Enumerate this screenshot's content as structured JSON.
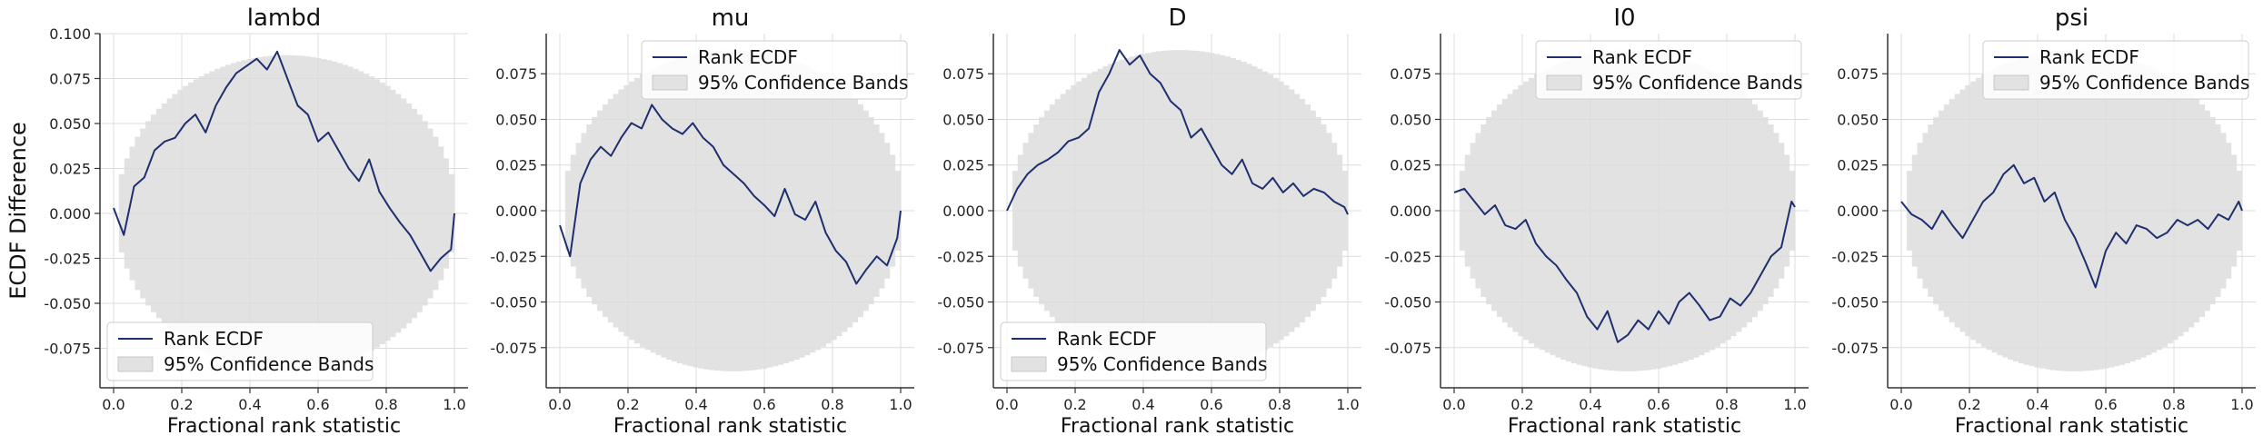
{
  "figure": {
    "ylabel": "ECDF Difference",
    "xlabel": "Fractional rank statistic"
  },
  "colors": {
    "line": "#1f2f6e",
    "band": "#e2e2e2",
    "grid": "#dcdcdc",
    "axis": "#333333"
  },
  "chart_data": [
    {
      "type": "line",
      "title": "lambd",
      "xlabel": "Fractional rank statistic",
      "ylabel": "ECDF Difference",
      "xlim": [
        -0.04,
        1.04
      ],
      "ylim": [
        -0.097,
        0.1
      ],
      "xticks": [
        "0.0",
        "0.2",
        "0.4",
        "0.6",
        "0.8",
        "1.0"
      ],
      "yticks": [
        "0.100",
        "0.075",
        "0.050",
        "0.025",
        "0.000",
        "-0.025",
        "-0.050",
        "-0.075"
      ],
      "ytick_values": [
        0.1,
        0.075,
        0.05,
        0.025,
        0.0,
        -0.025,
        -0.05,
        -0.075
      ],
      "grid": true,
      "legend": {
        "placement": "lower-left",
        "entries": [
          "Rank ECDF",
          "95% Confidence Bands"
        ]
      },
      "band_halfwidth": 0.088,
      "series": [
        {
          "name": "Rank ECDF",
          "x": [
            0.0,
            0.03,
            0.06,
            0.09,
            0.12,
            0.15,
            0.18,
            0.21,
            0.24,
            0.27,
            0.3,
            0.33,
            0.36,
            0.39,
            0.42,
            0.45,
            0.48,
            0.51,
            0.54,
            0.57,
            0.6,
            0.63,
            0.66,
            0.69,
            0.72,
            0.75,
            0.78,
            0.81,
            0.84,
            0.87,
            0.9,
            0.93,
            0.96,
            0.99,
            1.0
          ],
          "y": [
            0.003,
            -0.012,
            0.015,
            0.02,
            0.035,
            0.04,
            0.042,
            0.05,
            0.055,
            0.045,
            0.06,
            0.07,
            0.078,
            0.082,
            0.086,
            0.08,
            0.09,
            0.075,
            0.06,
            0.055,
            0.04,
            0.045,
            0.035,
            0.025,
            0.018,
            0.03,
            0.012,
            0.003,
            -0.005,
            -0.012,
            -0.022,
            -0.032,
            -0.025,
            -0.02,
            0.0
          ]
        }
      ]
    },
    {
      "type": "line",
      "title": "mu",
      "xlabel": "Fractional rank statistic",
      "ylabel": "",
      "xlim": [
        -0.04,
        1.04
      ],
      "ylim": [
        -0.097,
        0.097
      ],
      "xticks": [
        "0.0",
        "0.2",
        "0.4",
        "0.6",
        "0.8",
        "1.0"
      ],
      "yticks": [
        "0.075",
        "0.050",
        "0.025",
        "0.000",
        "-0.025",
        "-0.050",
        "-0.075"
      ],
      "ytick_values": [
        0.075,
        0.05,
        0.025,
        0.0,
        -0.025,
        -0.05,
        -0.075
      ],
      "grid": true,
      "legend": {
        "placement": "upper-right",
        "entries": [
          "Rank ECDF",
          "95% Confidence Bands"
        ]
      },
      "band_halfwidth": 0.088,
      "series": [
        {
          "name": "Rank ECDF",
          "x": [
            0.0,
            0.03,
            0.06,
            0.09,
            0.12,
            0.15,
            0.18,
            0.21,
            0.24,
            0.27,
            0.3,
            0.33,
            0.36,
            0.39,
            0.42,
            0.45,
            0.48,
            0.51,
            0.54,
            0.57,
            0.6,
            0.63,
            0.66,
            0.69,
            0.72,
            0.75,
            0.78,
            0.81,
            0.84,
            0.87,
            0.9,
            0.93,
            0.96,
            0.99,
            1.0
          ],
          "y": [
            -0.008,
            -0.025,
            0.015,
            0.028,
            0.035,
            0.03,
            0.04,
            0.048,
            0.045,
            0.058,
            0.05,
            0.045,
            0.042,
            0.048,
            0.04,
            0.035,
            0.025,
            0.02,
            0.015,
            0.008,
            0.003,
            -0.003,
            0.012,
            -0.002,
            -0.005,
            0.005,
            -0.012,
            -0.022,
            -0.028,
            -0.04,
            -0.032,
            -0.025,
            -0.03,
            -0.015,
            0.0
          ]
        }
      ]
    },
    {
      "type": "line",
      "title": "D",
      "xlabel": "Fractional rank statistic",
      "ylabel": "",
      "xlim": [
        -0.04,
        1.04
      ],
      "ylim": [
        -0.097,
        0.097
      ],
      "xticks": [
        "0.0",
        "0.2",
        "0.4",
        "0.6",
        "0.8",
        "1.0"
      ],
      "yticks": [
        "0.075",
        "0.050",
        "0.025",
        "0.000",
        "-0.025",
        "-0.050",
        "-0.075"
      ],
      "ytick_values": [
        0.075,
        0.05,
        0.025,
        0.0,
        -0.025,
        -0.05,
        -0.075
      ],
      "grid": true,
      "legend": {
        "placement": "lower-left",
        "entries": [
          "Rank ECDF",
          "95% Confidence Bands"
        ]
      },
      "band_halfwidth": 0.088,
      "series": [
        {
          "name": "Rank ECDF",
          "x": [
            0.0,
            0.03,
            0.06,
            0.09,
            0.12,
            0.15,
            0.18,
            0.21,
            0.24,
            0.27,
            0.3,
            0.33,
            0.36,
            0.39,
            0.42,
            0.45,
            0.48,
            0.51,
            0.54,
            0.57,
            0.6,
            0.63,
            0.66,
            0.69,
            0.72,
            0.75,
            0.78,
            0.81,
            0.84,
            0.87,
            0.9,
            0.93,
            0.96,
            0.99,
            1.0
          ],
          "y": [
            0.0,
            0.012,
            0.02,
            0.025,
            0.028,
            0.032,
            0.038,
            0.04,
            0.045,
            0.065,
            0.075,
            0.088,
            0.08,
            0.085,
            0.075,
            0.07,
            0.06,
            0.055,
            0.04,
            0.045,
            0.035,
            0.025,
            0.02,
            0.028,
            0.015,
            0.012,
            0.018,
            0.01,
            0.015,
            0.008,
            0.012,
            0.01,
            0.005,
            0.002,
            -0.002
          ]
        }
      ]
    },
    {
      "type": "line",
      "title": "I0",
      "xlabel": "Fractional rank statistic",
      "ylabel": "",
      "xlim": [
        -0.04,
        1.04
      ],
      "ylim": [
        -0.097,
        0.097
      ],
      "xticks": [
        "0.0",
        "0.2",
        "0.4",
        "0.6",
        "0.8",
        "1.0"
      ],
      "yticks": [
        "0.075",
        "0.050",
        "0.025",
        "0.000",
        "-0.025",
        "-0.050",
        "-0.075"
      ],
      "ytick_values": [
        0.075,
        0.05,
        0.025,
        0.0,
        -0.025,
        -0.05,
        -0.075
      ],
      "grid": true,
      "legend": {
        "placement": "upper-right",
        "entries": [
          "Rank ECDF",
          "95% Confidence Bands"
        ]
      },
      "band_halfwidth": 0.088,
      "series": [
        {
          "name": "Rank ECDF",
          "x": [
            0.0,
            0.03,
            0.06,
            0.09,
            0.12,
            0.15,
            0.18,
            0.21,
            0.24,
            0.27,
            0.3,
            0.33,
            0.36,
            0.39,
            0.42,
            0.45,
            0.48,
            0.51,
            0.54,
            0.57,
            0.6,
            0.63,
            0.66,
            0.69,
            0.72,
            0.75,
            0.78,
            0.81,
            0.84,
            0.87,
            0.9,
            0.93,
            0.96,
            0.99,
            1.0
          ],
          "y": [
            0.01,
            0.012,
            0.005,
            -0.002,
            0.003,
            -0.008,
            -0.01,
            -0.005,
            -0.018,
            -0.025,
            -0.03,
            -0.038,
            -0.045,
            -0.058,
            -0.065,
            -0.055,
            -0.072,
            -0.068,
            -0.06,
            -0.065,
            -0.055,
            -0.062,
            -0.05,
            -0.045,
            -0.052,
            -0.06,
            -0.058,
            -0.048,
            -0.052,
            -0.045,
            -0.035,
            -0.025,
            -0.02,
            0.005,
            0.002
          ]
        }
      ]
    },
    {
      "type": "line",
      "title": "psi",
      "xlabel": "Fractional rank statistic",
      "ylabel": "",
      "xlim": [
        -0.04,
        1.04
      ],
      "ylim": [
        -0.097,
        0.097
      ],
      "xticks": [
        "0.0",
        "0.2",
        "0.4",
        "0.6",
        "0.8",
        "1.0"
      ],
      "yticks": [
        "0.075",
        "0.050",
        "0.025",
        "0.000",
        "-0.025",
        "-0.050",
        "-0.075"
      ],
      "ytick_values": [
        0.075,
        0.05,
        0.025,
        0.0,
        -0.025,
        -0.05,
        -0.075
      ],
      "grid": true,
      "legend": {
        "placement": "upper-right",
        "entries": [
          "Rank ECDF",
          "95% Confidence Bands"
        ]
      },
      "band_halfwidth": 0.088,
      "series": [
        {
          "name": "Rank ECDF",
          "x": [
            0.0,
            0.03,
            0.06,
            0.09,
            0.12,
            0.15,
            0.18,
            0.21,
            0.24,
            0.27,
            0.3,
            0.33,
            0.36,
            0.39,
            0.42,
            0.45,
            0.48,
            0.51,
            0.54,
            0.57,
            0.6,
            0.63,
            0.66,
            0.69,
            0.72,
            0.75,
            0.78,
            0.81,
            0.84,
            0.87,
            0.9,
            0.93,
            0.96,
            0.99,
            1.0
          ],
          "y": [
            0.005,
            -0.002,
            -0.005,
            -0.01,
            0.0,
            -0.008,
            -0.015,
            -0.005,
            0.005,
            0.01,
            0.02,
            0.025,
            0.015,
            0.018,
            0.005,
            0.01,
            -0.005,
            -0.015,
            -0.028,
            -0.042,
            -0.022,
            -0.012,
            -0.018,
            -0.008,
            -0.01,
            -0.015,
            -0.012,
            -0.005,
            -0.008,
            -0.005,
            -0.01,
            -0.002,
            -0.005,
            0.005,
            0.0
          ]
        }
      ]
    }
  ]
}
